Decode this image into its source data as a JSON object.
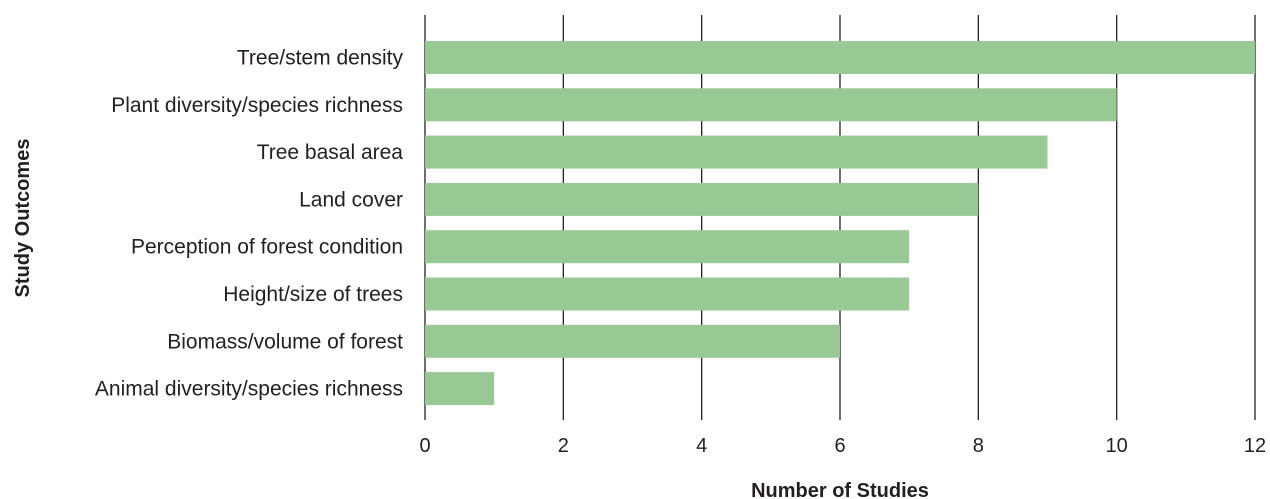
{
  "chart_data": {
    "type": "bar",
    "orientation": "horizontal",
    "title": "",
    "xlabel": "Number of Studies",
    "ylabel": "Study Outcomes",
    "categories": [
      "Tree/stem density",
      "Plant diversity/species richness",
      "Tree basal area",
      "Land cover",
      "Perception of forest condition",
      "Height/size of trees",
      "Biomass/volume of forest",
      "Animal diversity/species richness"
    ],
    "values": [
      12,
      10,
      9,
      8,
      7,
      7,
      6,
      1
    ],
    "xlim": [
      0,
      12
    ],
    "xticks": [
      "0",
      "2",
      "4",
      "6",
      "8",
      "10",
      "12"
    ],
    "grid": "vertical",
    "legend": "none",
    "bar_color": "#98c995",
    "grid_color": "#231f20",
    "text_color": "#231f20"
  }
}
